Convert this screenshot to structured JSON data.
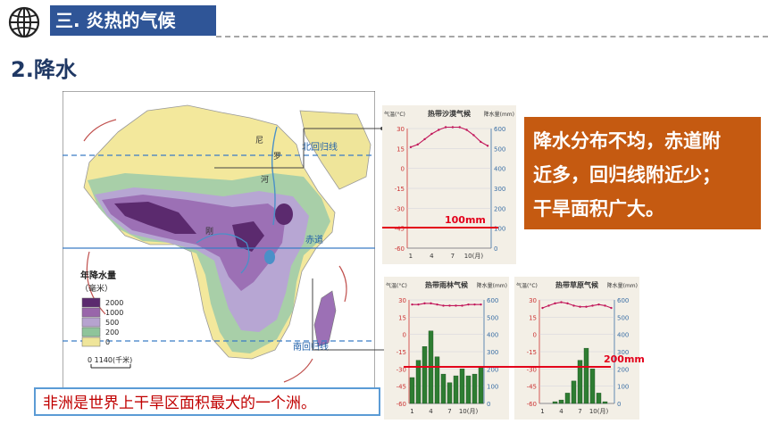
{
  "header": {
    "title": "三. 炎热的气候",
    "icon": "globe-icon",
    "bar_color": "#2f5597"
  },
  "section": {
    "title": "2.降水"
  },
  "map": {
    "labels": {
      "tropic_north": "北回归线",
      "equator": "赤道",
      "tropic_south": "南回归线",
      "river_n": "尼",
      "river_l": "罗",
      "river_r": "河",
      "congo": "刚",
      "scale": "0      1140(千米)"
    },
    "legend": {
      "title": "年降水量",
      "unit": "（毫米）",
      "items": [
        {
          "label": "2000",
          "color": "#5b2a6e"
        },
        {
          "label": "1000",
          "color": "#9966aa"
        },
        {
          "label": "500",
          "color": "#b6a3cf"
        },
        {
          "label": "200",
          "color": "#8fc49a"
        },
        {
          "label": "0",
          "color": "#efe59a"
        }
      ]
    },
    "colors": {
      "ocean": "#ffffff",
      "desert": "#f3e89c",
      "arid": "#e7e2a0",
      "semi": "#a8cfa8",
      "wet": "#b7a6d3",
      "wetter": "#9c70b5",
      "wettest": "#5b2a6e"
    }
  },
  "panel1": {
    "title": "热带沙漠气候",
    "temp_label": "气温(°C)",
    "precip_label": "降水量(mm)",
    "temp_ticks": [
      "30",
      "15",
      "0",
      "-15",
      "-30",
      "-45",
      "-60"
    ],
    "precip_ticks": [
      "600",
      "500",
      "400",
      "300",
      "200",
      "100",
      "0"
    ],
    "x_ticks": [
      "1",
      "4",
      "7",
      "10(月)"
    ],
    "marker_text": "100mm",
    "temperature": [
      16,
      18,
      22,
      26,
      29,
      31,
      31,
      31,
      29,
      25,
      20,
      17
    ],
    "precipitation": [
      0,
      0,
      0,
      0,
      0,
      0,
      0,
      0,
      0,
      0,
      0,
      0
    ]
  },
  "panel2": {
    "title": "热带雨林气候",
    "temp_label": "气温(°C)",
    "precip_label": "降水量(mm)",
    "temp_ticks": [
      "30",
      "15",
      "0",
      "-15",
      "-30",
      "-45",
      "-60"
    ],
    "precip_ticks": [
      "600",
      "500",
      "400",
      "300",
      "200",
      "100",
      "0"
    ],
    "x_ticks": [
      "1",
      "4",
      "7",
      "10(月)"
    ],
    "temperature": [
      26,
      26,
      27,
      27,
      26,
      25,
      25,
      25,
      25,
      26,
      26,
      26
    ],
    "precipitation": [
      150,
      250,
      330,
      420,
      270,
      170,
      120,
      160,
      200,
      160,
      170,
      210
    ]
  },
  "panel3": {
    "title": "热带草原气候",
    "temp_label": "气温(°C)",
    "precip_label": "降水量(mm)",
    "temp_ticks": [
      "30",
      "15",
      "0",
      "-15",
      "-30",
      "-45",
      "-60"
    ],
    "precip_ticks": [
      "600",
      "500",
      "400",
      "300",
      "200",
      "100",
      "0"
    ],
    "x_ticks": [
      "1",
      "4",
      "7",
      "10(月)"
    ],
    "marker_text": "200mm",
    "temperature": [
      23,
      25,
      27,
      28,
      27,
      25,
      24,
      24,
      25,
      26,
      25,
      23
    ],
    "precipitation": [
      0,
      0,
      10,
      20,
      60,
      130,
      250,
      320,
      200,
      60,
      10,
      0
    ]
  },
  "callout": {
    "lines": [
      "降水分布不均，赤道附",
      "近多，回归线附近少；",
      "干旱面积广大。"
    ],
    "color": "#c55a11"
  },
  "caption": {
    "text": "非洲是世界上干旱区面积最大的一个洲。"
  }
}
